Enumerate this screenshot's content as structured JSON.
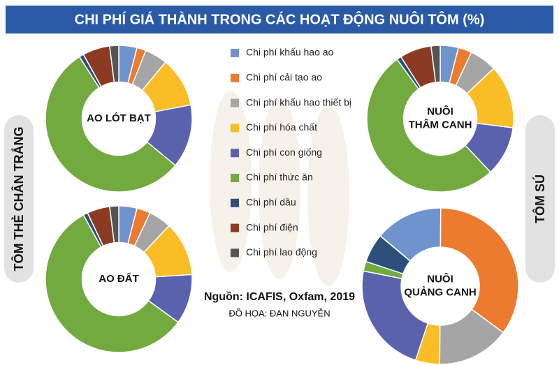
{
  "title": "CHI PHÍ GIÁ THÀNH TRONG CÁC HOẠT ĐỘNG NUÔI TÔM (%)",
  "side_labels": [
    "TÔM THẺ CHÂN TRẮNG",
    "TÔM SÚ"
  ],
  "legend": {
    "categories": [
      "Chi phí khấu hao ao",
      "Chi phí cải tạo ao",
      "Chi phí khấu hao thiết bị",
      "Chi phí hóa chất",
      "Chi phí con giống",
      "Chi phí thức ăn",
      "Chi phí dầu",
      "Chi phí điện",
      "Chi phí lao động"
    ],
    "colors": [
      "#6f93cc",
      "#ec7a2f",
      "#a5a5a5",
      "#fbbd25",
      "#5a62ad",
      "#72aa3f",
      "#2d4f7a",
      "#8b3b24",
      "#555555"
    ]
  },
  "source": "Nguồn: ICAFIS, Oxfam, 2019",
  "credit": "ĐỒ HỌA: ĐAN NGUYỄN",
  "chart_data": [
    {
      "type": "donut",
      "label": [
        "AO LÓT BẠT"
      ],
      "values": [
        4,
        2,
        5,
        11,
        14,
        55,
        1,
        6,
        2
      ],
      "start_angle": 0
    },
    {
      "type": "donut",
      "label": [
        "NUÔI",
        "THÂM CANH"
      ],
      "values": [
        4,
        3,
        6,
        14,
        11,
        52,
        1,
        7,
        2
      ],
      "start_angle": 0
    },
    {
      "type": "donut",
      "label": [
        "AO ĐẤT"
      ],
      "values": [
        4,
        3,
        5,
        12,
        11,
        57,
        1,
        5,
        2
      ],
      "start_angle": 0
    },
    {
      "type": "donut",
      "label": [
        "NUÔI",
        "QUẢNG CANH"
      ],
      "values": [
        14,
        35,
        15,
        5,
        23,
        2,
        6,
        0,
        0
      ],
      "start_angle": -50
    }
  ]
}
